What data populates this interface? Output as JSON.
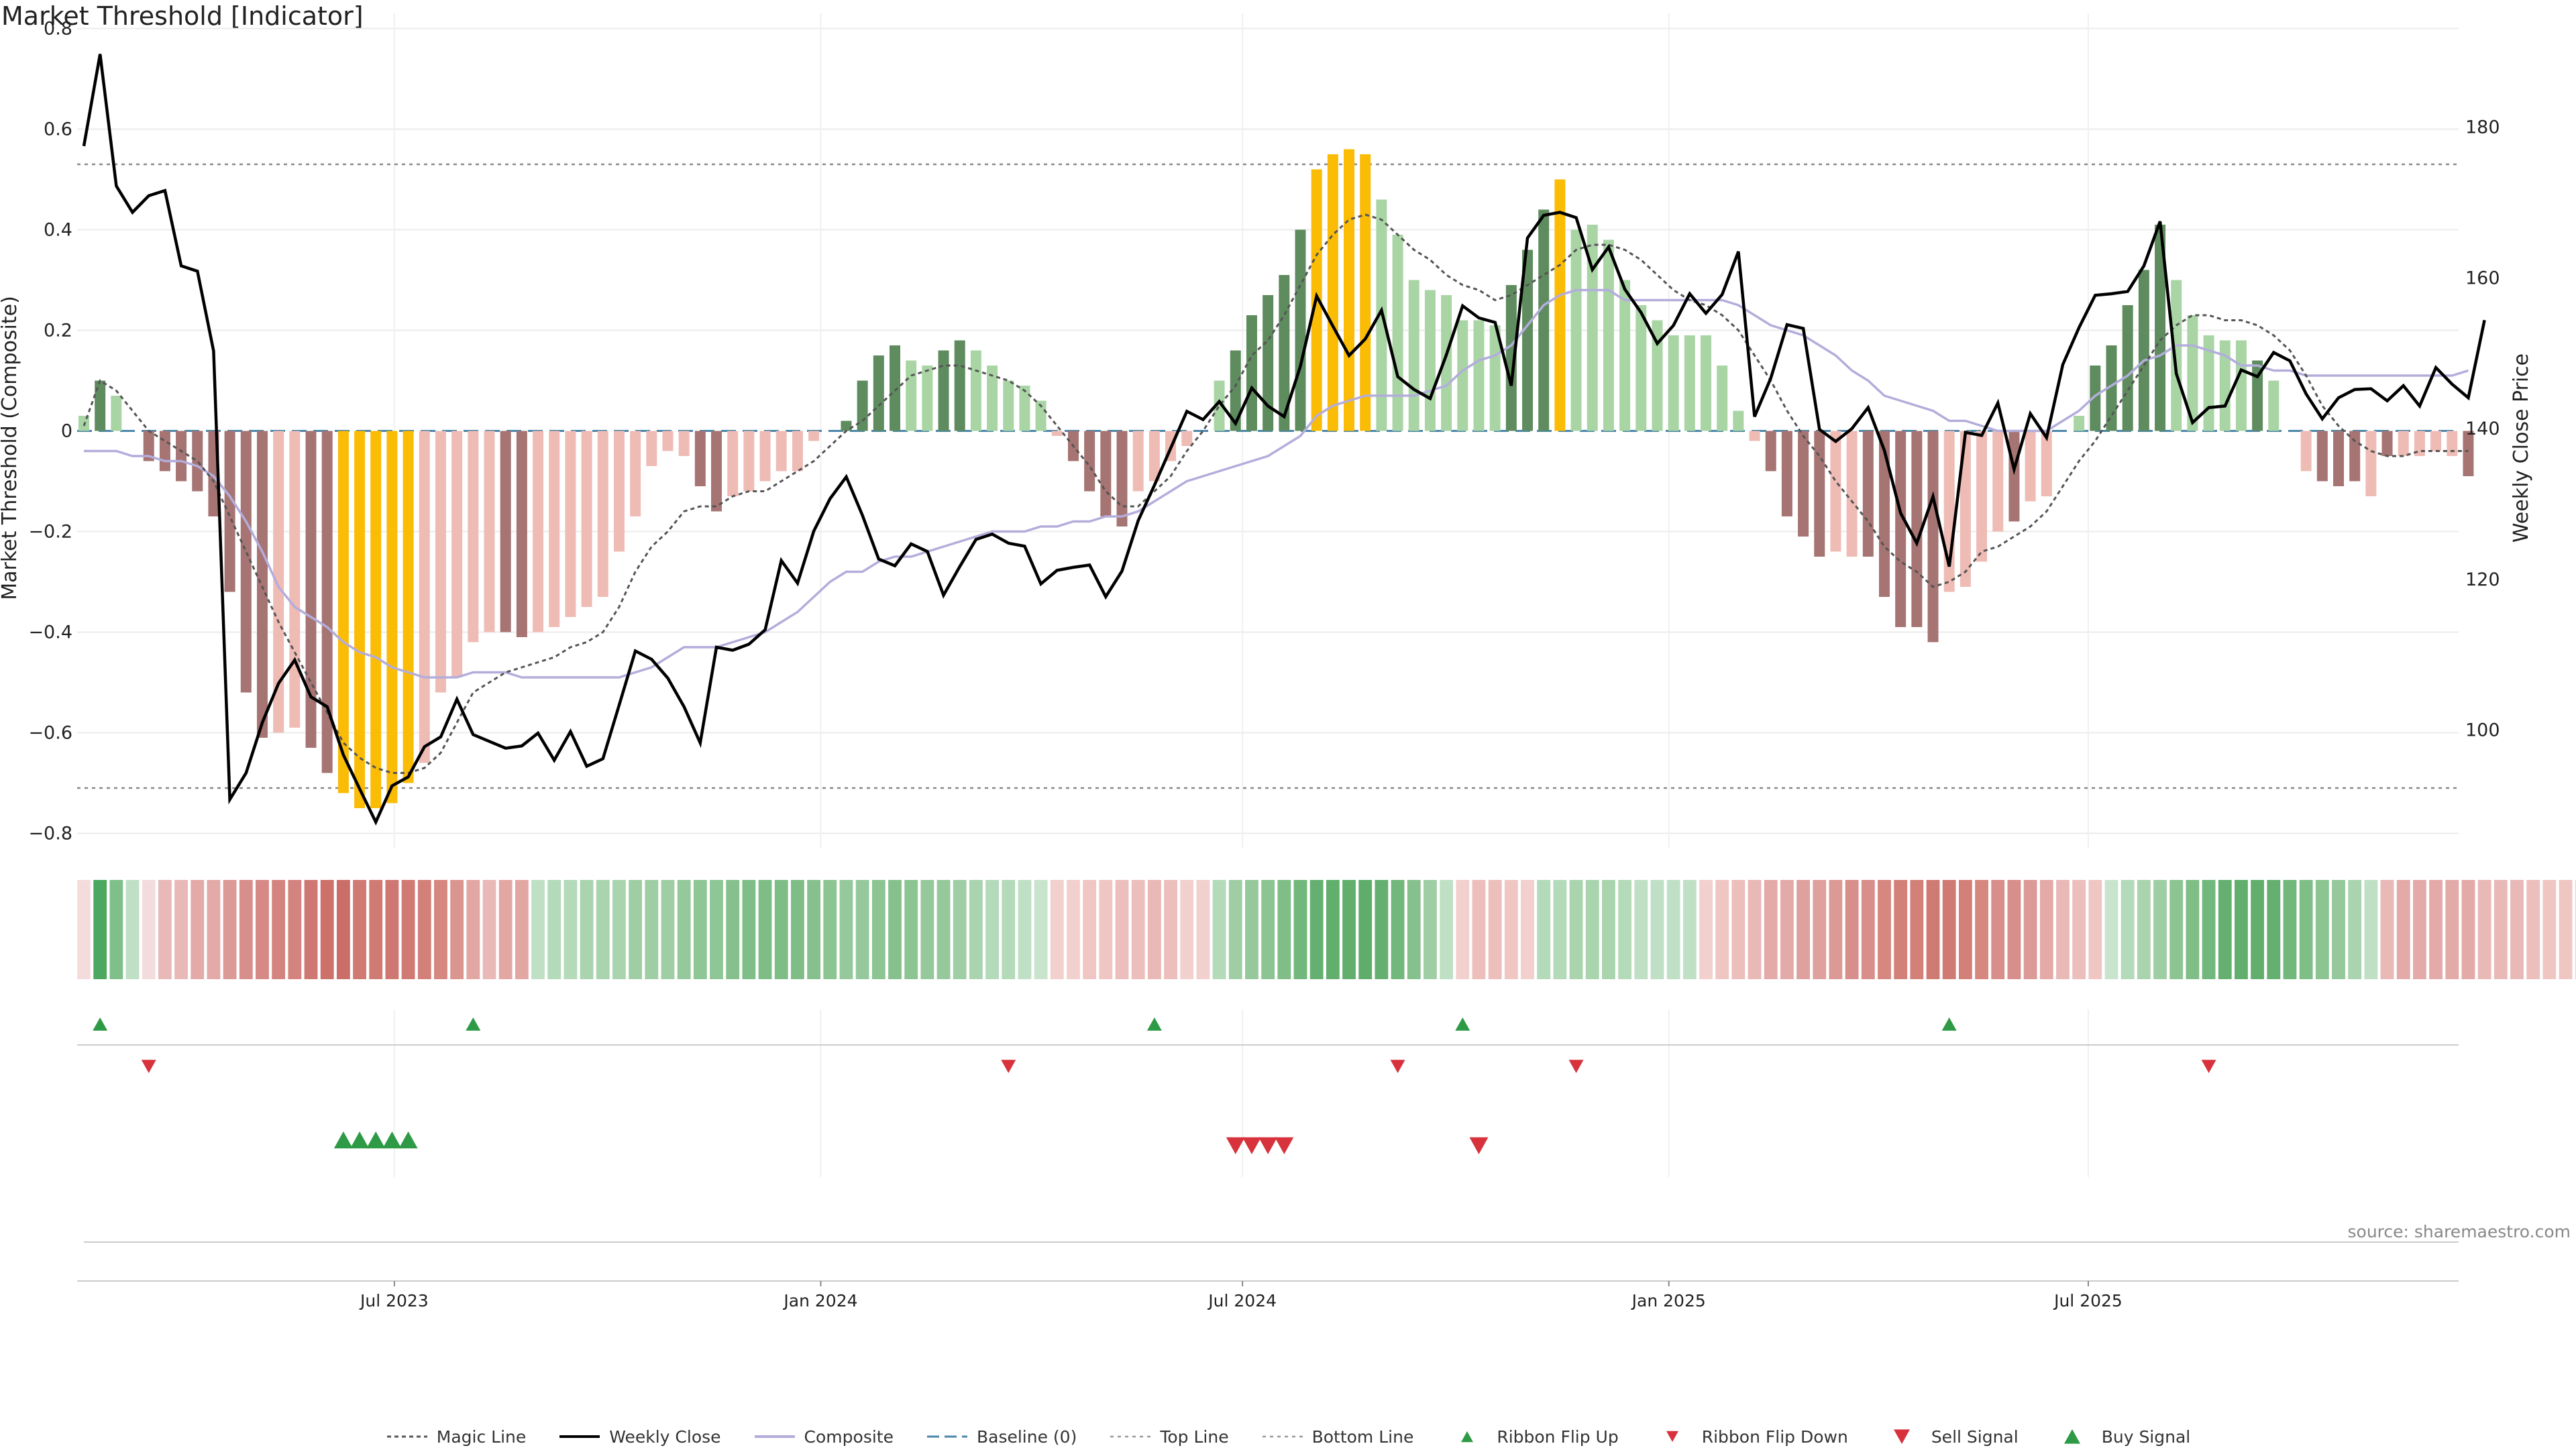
{
  "title": "Market Threshold [Indicator]",
  "source": "source: sharemaestro.com",
  "colors": {
    "pos_strong": "#5f8c5f",
    "pos_light": "#a9d5a5",
    "neg_strong": "#a67472",
    "neg_light": "#efbcb5",
    "extreme": "#fbbc05",
    "weekly_close": "#000000",
    "composite": "#b3addb",
    "magic": "#555555",
    "baseline": "#4a86a8",
    "buy": "#2e9a45",
    "sell": "#d8323c"
  },
  "chart_data": {
    "type": "bar",
    "x_start": "2023-02-17",
    "x_interval": "weekly",
    "x_ticks": [
      "Jul 2023",
      "Jan 2024",
      "Jul 2024",
      "Jan 2025",
      "Jul 2025"
    ],
    "x_tick_dates": [
      "2023-07-01",
      "2024-01-01",
      "2024-07-01",
      "2025-01-01",
      "2025-07-01"
    ],
    "ylabel_left": "Market Threshold (Composite)",
    "ylabel_right": "Weekly Close Price",
    "ylim_left": [
      -0.83,
      0.83
    ],
    "ylim_right": [
      84.3,
      195.1
    ],
    "yticks_left": [
      "0.8",
      "0.6",
      "0.4",
      "0.2",
      "0",
      "−0.2",
      "−0.4",
      "−0.6",
      "−0.8"
    ],
    "yticks_right": [
      "180",
      "160",
      "140",
      "120",
      "100"
    ],
    "top_line": 0.53,
    "bottom_line": -0.71,
    "legend_position": "bottom-center",
    "grid": true,
    "series": [
      {
        "name": "Market Threshold (Composite)",
        "kind": "bar",
        "values": [
          0.03,
          0.1,
          0.07,
          0,
          -0.06,
          -0.08,
          -0.1,
          -0.12,
          -0.17,
          -0.32,
          -0.52,
          -0.61,
          -0.6,
          -0.59,
          -0.63,
          -0.68,
          -0.72,
          -0.75,
          -0.75,
          -0.74,
          -0.7,
          -0.66,
          -0.52,
          -0.49,
          -0.42,
          -0.4,
          -0.4,
          -0.41,
          -0.4,
          -0.39,
          -0.37,
          -0.35,
          -0.33,
          -0.24,
          -0.17,
          -0.07,
          -0.04,
          -0.05,
          -0.11,
          -0.16,
          -0.13,
          -0.12,
          -0.1,
          -0.08,
          -0.08,
          -0.02,
          0,
          0.02,
          0.1,
          0.15,
          0.17,
          0.14,
          0.13,
          0.16,
          0.18,
          0.16,
          0.13,
          0.1,
          0.09,
          0.06,
          -0.01,
          -0.06,
          -0.12,
          -0.17,
          -0.19,
          -0.12,
          -0.1,
          -0.06,
          -0.03,
          0,
          0.1,
          0.16,
          0.23,
          0.27,
          0.31,
          0.4,
          0.52,
          0.55,
          0.56,
          0.55,
          0.46,
          0.39,
          0.3,
          0.28,
          0.27,
          0.22,
          0.22,
          0.21,
          0.29,
          0.36,
          0.44,
          0.5,
          0.4,
          0.41,
          0.38,
          0.3,
          0.25,
          0.22,
          0.19,
          0.19,
          0.19,
          0.13,
          0.04,
          -0.02,
          -0.08,
          -0.17,
          -0.21,
          -0.25,
          -0.24,
          -0.25,
          -0.25,
          -0.33,
          -0.39,
          -0.39,
          -0.42,
          -0.32,
          -0.31,
          -0.26,
          -0.2,
          -0.18,
          -0.14,
          -0.13,
          0,
          0.03,
          0.13,
          0.17,
          0.25,
          0.32,
          0.41,
          0.3,
          0.23,
          0.19,
          0.18,
          0.18,
          0.14,
          0.1,
          0,
          -0.08,
          -0.1,
          -0.11,
          -0.1,
          -0.13,
          -0.05,
          -0.05,
          -0.05,
          -0.04,
          -0.05,
          -0.09
        ],
        "colors": [
          "pl",
          "ps",
          "pl",
          "nl",
          "ns",
          "ns",
          "ns",
          "ns",
          "ns",
          "ns",
          "ns",
          "ns",
          "nl",
          "nl",
          "ns",
          "ns",
          "ex",
          "ex",
          "ex",
          "ex",
          "ex",
          "nl",
          "nl",
          "nl",
          "nl",
          "nl",
          "ns",
          "ns",
          "nl",
          "nl",
          "nl",
          "nl",
          "nl",
          "nl",
          "nl",
          "nl",
          "nl",
          "nl",
          "ns",
          "ns",
          "nl",
          "nl",
          "nl",
          "nl",
          "nl",
          "nl",
          "pl",
          "ps",
          "ps",
          "ps",
          "ps",
          "pl",
          "pl",
          "ps",
          "ps",
          "pl",
          "pl",
          "pl",
          "pl",
          "pl",
          "nl",
          "ns",
          "ns",
          "ns",
          "ns",
          "nl",
          "nl",
          "nl",
          "nl",
          "pl",
          "pl",
          "ps",
          "ps",
          "ps",
          "ps",
          "ps",
          "ex",
          "ex",
          "ex",
          "ex",
          "pl",
          "pl",
          "pl",
          "pl",
          "pl",
          "pl",
          "pl",
          "pl",
          "ps",
          "ps",
          "ps",
          "ex",
          "pl",
          "pl",
          "pl",
          "pl",
          "pl",
          "pl",
          "pl",
          "pl",
          "pl",
          "pl",
          "pl",
          "nl",
          "ns",
          "ns",
          "ns",
          "ns",
          "nl",
          "nl",
          "ns",
          "ns",
          "ns",
          "ns",
          "ns",
          "nl",
          "nl",
          "nl",
          "nl",
          "ns",
          "nl",
          "nl",
          "pl",
          "pl",
          "ps",
          "ps",
          "ps",
          "ps",
          "ps",
          "pl",
          "pl",
          "pl",
          "pl",
          "pl",
          "ps",
          "pl",
          "pl",
          "nl",
          "ns",
          "ns",
          "ns",
          "nl",
          "ns",
          "nl",
          "nl",
          "nl",
          "nl",
          "ns",
          "ns"
        ]
      },
      {
        "name": "Weekly Close",
        "kind": "line",
        "axis": "right",
        "values": [
          177.5,
          189.7,
          172.2,
          168.7,
          170.9,
          171.6,
          161.6,
          160.9,
          150.3,
          90.8,
          94.3,
          101.0,
          106.2,
          109.3,
          104.4,
          103.1,
          96.7,
          92.2,
          87.8,
          92.6,
          93.8,
          97.8,
          99.1,
          104.1,
          99.4,
          98.5,
          97.6,
          97.9,
          99.6,
          96.0,
          99.8,
          95.2,
          96.2,
          103.3,
          110.5,
          109.4,
          106.9,
          103.1,
          98.3,
          111.0,
          110.6,
          111.4,
          113.3,
          122.5,
          119.5,
          126.4,
          130.7,
          133.6,
          128.5,
          122.7,
          121.8,
          124.7,
          123.7,
          117.9,
          121.7,
          125.3,
          126.0,
          124.8,
          124.4,
          119.4,
          121.2,
          121.6,
          121.9,
          117.7,
          121.1,
          127.8,
          132.5,
          137.4,
          142.3,
          141.2,
          143.6,
          140.7,
          145.4,
          143.0,
          141.6,
          148.3,
          157.6,
          153.6,
          149.7,
          151.9,
          155.7,
          146.9,
          145.2,
          144.0,
          149.8,
          156.3,
          154.7,
          154.1,
          145.7,
          165.3,
          168.3,
          168.7,
          168.0,
          161.1,
          164.1,
          158.5,
          155.4,
          151.3,
          153.7,
          157.9,
          155.3,
          157.8,
          163.5,
          141.6,
          146.7,
          153.8,
          153.3,
          139.9,
          138.3,
          140.0,
          142.8,
          137.1,
          128.8,
          124.8,
          131.0,
          121.7,
          139.5,
          139.1,
          143.4,
          134.6,
          142.0,
          138.8,
          148.5,
          153.4,
          157.7,
          157.9,
          158.2,
          161.6,
          167.5,
          147.3,
          140.8,
          142.8,
          143.0,
          147.8,
          146.9,
          150.1,
          149.0,
          144.6,
          141.3,
          144.1,
          145.2,
          145.3,
          143.7,
          145.7,
          143.0,
          148.1,
          145.9,
          144.1,
          154.4
        ]
      },
      {
        "name": "Composite",
        "kind": "line",
        "values": [
          -0.04,
          -0.04,
          -0.04,
          -0.05,
          -0.05,
          -0.06,
          -0.06,
          -0.07,
          -0.09,
          -0.13,
          -0.18,
          -0.24,
          -0.31,
          -0.35,
          -0.37,
          -0.39,
          -0.42,
          -0.44,
          -0.45,
          -0.47,
          -0.48,
          -0.49,
          -0.49,
          -0.49,
          -0.48,
          -0.48,
          -0.48,
          -0.49,
          -0.49,
          -0.49,
          -0.49,
          -0.49,
          -0.49,
          -0.49,
          -0.48,
          -0.47,
          -0.45,
          -0.43,
          -0.43,
          -0.43,
          -0.42,
          -0.41,
          -0.4,
          -0.38,
          -0.36,
          -0.33,
          -0.3,
          -0.28,
          -0.28,
          -0.26,
          -0.25,
          -0.25,
          -0.24,
          -0.23,
          -0.22,
          -0.21,
          -0.2,
          -0.2,
          -0.2,
          -0.19,
          -0.19,
          -0.18,
          -0.18,
          -0.17,
          -0.17,
          -0.16,
          -0.14,
          -0.12,
          -0.1,
          -0.09,
          -0.08,
          -0.07,
          -0.06,
          -0.05,
          -0.03,
          -0.01,
          0.03,
          0.05,
          0.06,
          0.07,
          0.07,
          0.07,
          0.07,
          0.08,
          0.09,
          0.12,
          0.14,
          0.15,
          0.17,
          0.21,
          0.25,
          0.27,
          0.28,
          0.28,
          0.28,
          0.26,
          0.26,
          0.26,
          0.26,
          0.26,
          0.26,
          0.26,
          0.25,
          0.23,
          0.21,
          0.2,
          0.19,
          0.17,
          0.15,
          0.12,
          0.1,
          0.07,
          0.06,
          0.05,
          0.04,
          0.02,
          0.02,
          0.01,
          0,
          0,
          0,
          0,
          0.02,
          0.04,
          0.07,
          0.09,
          0.11,
          0.14,
          0.15,
          0.17,
          0.17,
          0.16,
          0.15,
          0.13,
          0.13,
          0.12,
          0.12,
          0.11,
          0.11,
          0.11,
          0.11,
          0.11,
          0.11,
          0.11,
          0.11,
          0.11,
          0.11,
          0.12
        ]
      },
      {
        "name": "Magic Line",
        "kind": "line",
        "values": [
          0.01,
          0.1,
          0.08,
          0.04,
          0,
          -0.02,
          -0.04,
          -0.06,
          -0.1,
          -0.17,
          -0.24,
          -0.31,
          -0.38,
          -0.44,
          -0.5,
          -0.56,
          -0.62,
          -0.65,
          -0.67,
          -0.68,
          -0.68,
          -0.67,
          -0.64,
          -0.58,
          -0.52,
          -0.5,
          -0.48,
          -0.47,
          -0.46,
          -0.45,
          -0.43,
          -0.42,
          -0.4,
          -0.35,
          -0.28,
          -0.23,
          -0.2,
          -0.16,
          -0.15,
          -0.15,
          -0.13,
          -0.12,
          -0.12,
          -0.1,
          -0.08,
          -0.06,
          -0.03,
          0,
          0.02,
          0.05,
          0.08,
          0.11,
          0.12,
          0.13,
          0.13,
          0.12,
          0.11,
          0.1,
          0.08,
          0.05,
          0.01,
          -0.03,
          -0.07,
          -0.12,
          -0.15,
          -0.15,
          -0.12,
          -0.09,
          -0.04,
          0,
          0.05,
          0.09,
          0.15,
          0.18,
          0.23,
          0.29,
          0.35,
          0.39,
          0.42,
          0.43,
          0.42,
          0.39,
          0.36,
          0.34,
          0.31,
          0.29,
          0.28,
          0.26,
          0.27,
          0.29,
          0.31,
          0.33,
          0.36,
          0.37,
          0.37,
          0.36,
          0.34,
          0.31,
          0.28,
          0.26,
          0.25,
          0.23,
          0.2,
          0.15,
          0.1,
          0.04,
          -0.01,
          -0.05,
          -0.1,
          -0.14,
          -0.18,
          -0.23,
          -0.26,
          -0.28,
          -0.31,
          -0.3,
          -0.28,
          -0.24,
          -0.23,
          -0.21,
          -0.19,
          -0.16,
          -0.11,
          -0.06,
          -0.02,
          0.03,
          0.08,
          0.13,
          0.18,
          0.21,
          0.23,
          0.23,
          0.22,
          0.22,
          0.21,
          0.19,
          0.16,
          0.11,
          0.05,
          0.01,
          -0.02,
          -0.04,
          -0.05,
          -0.05,
          -0.04,
          -0.04,
          -0.04,
          -0.04
        ]
      }
    ],
    "ribbon": {
      "name": "Ribbon",
      "colors": [
        "#f5dcdc",
        "#4ba85e",
        "#7fc08a",
        "#bfe0c4",
        "#f5dcdc",
        "#e8b9b6",
        "#e8b9b6",
        "#e3aaa7",
        "#e3aaa7",
        "#dc9a96",
        "#d88e8a",
        "#d68985",
        "#d4847f",
        "#d4847f",
        "#cf7873",
        "#cd716b",
        "#cc6e68",
        "#d07a74",
        "#d07a74",
        "#cf7873",
        "#d07a74",
        "#d38079",
        "#d6877f",
        "#db958f",
        "#e2a7a2",
        "#e8b9b6",
        "#e2a7a2",
        "#e2a7a2",
        "#bfe0c4",
        "#b3dab9",
        "#b3dab9",
        "#a9d4ae",
        "#a9d4ae",
        "#a9d4ae",
        "#9fcea4",
        "#9fcea4",
        "#9fcea4",
        "#95c99b",
        "#8fc695",
        "#8fc695",
        "#86c18d",
        "#80be87",
        "#7fbd86",
        "#7fbd86",
        "#7fbd86",
        "#86c18d",
        "#8cc492",
        "#95c99b",
        "#95c99b",
        "#8cc492",
        "#86c18d",
        "#8cc492",
        "#95c99b",
        "#95c99b",
        "#9fcea4",
        "#a9d4ae",
        "#b3dab9",
        "#b3dab9",
        "#bfe0c4",
        "#c8e4cc",
        "#f2d0cd",
        "#f2d0cd",
        "#efc6c2",
        "#efc6c2",
        "#ecbfbc",
        "#ecbfbc",
        "#e8b9b6",
        "#ecbfbc",
        "#f2d0cd",
        "#f2d0cd",
        "#b3dab9",
        "#9fcea4",
        "#95c99b",
        "#8cc492",
        "#80be87",
        "#72b77b",
        "#65b070",
        "#62ae6d",
        "#62ae6d",
        "#5fac6b",
        "#65b070",
        "#72b77b",
        "#86c18d",
        "#9fcea4",
        "#bfe0c4",
        "#f2d0cd",
        "#ecbfbc",
        "#ecbfbc",
        "#efc6c2",
        "#f2d0cd",
        "#b3dab9",
        "#b3dab9",
        "#a9d4ae",
        "#a9d4ae",
        "#a9d4ae",
        "#b3dab9",
        "#bfe0c4",
        "#bfe0c4",
        "#bfe0c4",
        "#bfe0c4",
        "#f2d0cd",
        "#efc6c2",
        "#ecbfbc",
        "#e8b9b6",
        "#e3aaa7",
        "#e3aaa7",
        "#dea19d",
        "#dea19d",
        "#dc9a96",
        "#d88e8a",
        "#d88e8a",
        "#d6877f",
        "#d38079",
        "#d38079",
        "#d07a74",
        "#d07a74",
        "#d38079",
        "#d6877f",
        "#d88e8a",
        "#d88e8a",
        "#dc9a96",
        "#e3aaa7",
        "#e8b9b6",
        "#ecbfbc",
        "#efc6c2",
        "#c8e4cc",
        "#b3dab9",
        "#a9d4ae",
        "#9fcea4",
        "#8cc492",
        "#80be87",
        "#72b77b",
        "#65b070",
        "#62ae6d",
        "#62ae6d",
        "#65b070",
        "#72b77b",
        "#80be87",
        "#8cc492",
        "#95c99b",
        "#a9d4ae",
        "#bfe0c4",
        "#e8b9b6",
        "#e3aaa7",
        "#e3aaa7",
        "#e3aaa7",
        "#e3aaa7",
        "#e3aaa7",
        "#e8b9b6",
        "#e8b9b6",
        "#e8b9b6",
        "#ecbfbc",
        "#efc6c2",
        "#efc6c2",
        "#f2d0cd"
      ]
    },
    "ribbon_flip_up": [
      1,
      24,
      66,
      85,
      115
    ],
    "ribbon_flip_down": [
      4,
      57,
      81,
      92,
      131
    ],
    "buy_signal": [
      16,
      17,
      18,
      19,
      20
    ],
    "sell_signal": [
      71,
      72,
      73,
      74,
      86
    ]
  },
  "legend": {
    "items": [
      {
        "label": "Magic Line",
        "glyph": "dotted"
      },
      {
        "label": "Weekly Close",
        "glyph": "solid"
      },
      {
        "label": "Composite",
        "glyph": "lavender"
      },
      {
        "label": "Baseline (0)",
        "glyph": "dashed"
      },
      {
        "label": "Top Line",
        "glyph": "dotted-light"
      },
      {
        "label": "Bottom Line",
        "glyph": "dotted-light"
      },
      {
        "label": "Ribbon Flip Up",
        "glyph": "tri-up"
      },
      {
        "label": "Ribbon Flip Down",
        "glyph": "tri-down"
      },
      {
        "label": "Sell Signal",
        "glyph": "tri-down-big"
      },
      {
        "label": "Buy Signal",
        "glyph": "tri-up-big"
      }
    ]
  }
}
